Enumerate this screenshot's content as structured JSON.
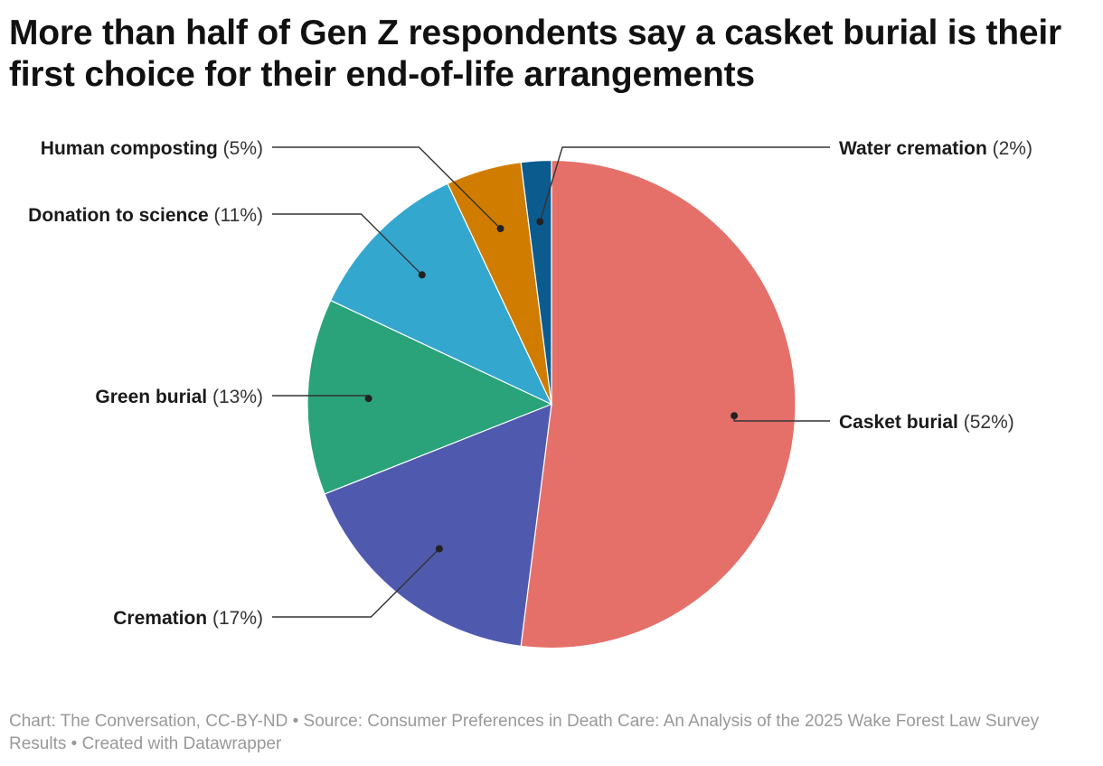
{
  "chart_data": {
    "type": "pie",
    "title": "More than half of Gen Z respondents say a casket burial is their first choice for their end-of-life arrangements",
    "categories": [
      "Casket burial",
      "Cremation",
      "Green burial",
      "Donation to science",
      "Human composting",
      "Water cremation"
    ],
    "values": [
      52,
      17,
      13,
      11,
      5,
      2
    ],
    "value_labels": [
      "(52%)",
      "(17%)",
      "(13%)",
      "(11%)",
      "(5%)",
      "(2%)"
    ],
    "colors": [
      "#e5706a",
      "#4f5aae",
      "#2aa37a",
      "#34a7cf",
      "#d07c00",
      "#0b5b8f"
    ],
    "legend": "none",
    "label_placement": "outside with leader lines",
    "footer": "Chart: The Conversation, CC-BY-ND • Source: Consumer Preferences in Death Care: An Analysis of the 2025 Wake Forest Law Survey Results • Created with Datawrapper"
  }
}
